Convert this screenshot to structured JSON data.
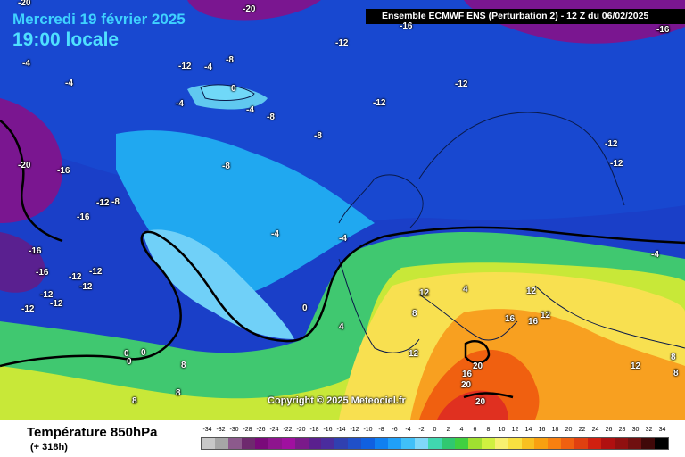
{
  "header": {
    "date": "Mercredi 19 février 2025",
    "time": "19:00 locale",
    "model": "Ensemble ECMWF ENS  (Perturbation 2)  -  12 Z du 06/02/2025"
  },
  "copyright": "Copyright © 2025 Meteociel.fr",
  "footer": {
    "title": "Température 850hPa",
    "subtitle": "(+ 318h)"
  },
  "legend": {
    "ticks": [
      "-34",
      "-32",
      "-30",
      "-28",
      "-26",
      "-24",
      "-22",
      "-20",
      "-18",
      "-16",
      "-14",
      "-12",
      "-10",
      "-8",
      "-6",
      "-4",
      "-2",
      "0",
      "2",
      "4",
      "6",
      "8",
      "10",
      "12",
      "14",
      "16",
      "18",
      "20",
      "22",
      "24",
      "26",
      "28",
      "30",
      "32",
      "34"
    ],
    "colors": [
      "#c8c8c8",
      "#a6a6a6",
      "#8c5a8c",
      "#6e2a6e",
      "#7a0a7a",
      "#8e148e",
      "#a010a0",
      "#7a1a8a",
      "#5a208e",
      "#4a2c9e",
      "#3040b0",
      "#2050c8",
      "#1060e0",
      "#1080f0",
      "#20a0f8",
      "#40c0f8",
      "#80d8f8",
      "#40d8b0",
      "#30c870",
      "#40d040",
      "#a0e030",
      "#d0f040",
      "#f8f070",
      "#f8e040",
      "#f8c020",
      "#f8a010",
      "#f88010",
      "#f06010",
      "#e04010",
      "#d02010",
      "#b01010",
      "#901010",
      "#701010",
      "#400808",
      "#000000"
    ]
  },
  "map_labels": [
    {
      "text": "-20"
    },
    {
      "text": "-16"
    },
    {
      "text": "-16"
    },
    {
      "text": "-12"
    },
    {
      "text": "-4"
    },
    {
      "text": "-12"
    },
    {
      "text": "-4"
    },
    {
      "text": "-8"
    },
    {
      "text": "0"
    },
    {
      "text": "-4"
    },
    {
      "text": "-4"
    },
    {
      "text": "-12"
    },
    {
      "text": "-12"
    },
    {
      "text": "-4"
    },
    {
      "text": "-8"
    },
    {
      "text": "-8"
    },
    {
      "text": "-8"
    },
    {
      "text": "-12"
    },
    {
      "text": "-12"
    },
    {
      "text": "-12"
    },
    {
      "text": "-20"
    },
    {
      "text": "-16"
    },
    {
      "text": "-16"
    },
    {
      "text": "-12"
    },
    {
      "text": "-8"
    },
    {
      "text": "-16"
    },
    {
      "text": "-16"
    },
    {
      "text": "-12"
    },
    {
      "text": "-12"
    },
    {
      "text": "-12"
    },
    {
      "text": "-12"
    },
    {
      "text": "-12"
    },
    {
      "text": "-12"
    },
    {
      "text": "-4"
    },
    {
      "text": "-4"
    },
    {
      "text": "0"
    },
    {
      "text": "4"
    },
    {
      "text": "0"
    },
    {
      "text": "0"
    },
    {
      "text": "8"
    },
    {
      "text": "8"
    },
    {
      "text": "12"
    },
    {
      "text": "8"
    },
    {
      "text": "4"
    },
    {
      "text": "12"
    },
    {
      "text": "16"
    },
    {
      "text": "16"
    },
    {
      "text": "12"
    },
    {
      "text": "12"
    },
    {
      "text": "20"
    },
    {
      "text": "16"
    },
    {
      "text": "20"
    },
    {
      "text": "20"
    },
    {
      "text": "12"
    },
    {
      "text": "8"
    },
    {
      "text": "-4"
    },
    {
      "text": "-20"
    },
    {
      "text": "-16"
    },
    {
      "text": "8"
    },
    {
      "text": "8"
    },
    {
      "text": "0"
    }
  ]
}
